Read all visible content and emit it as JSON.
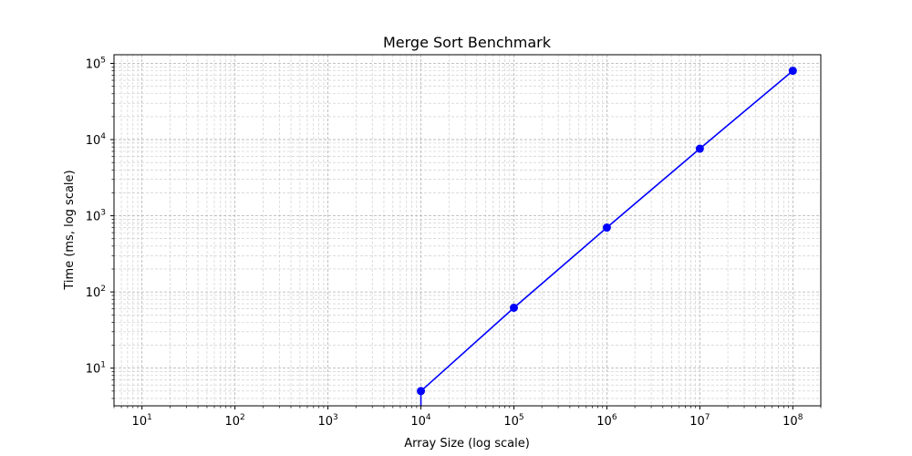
{
  "chart_data": {
    "type": "line",
    "title": "Merge Sort Benchmark",
    "xlabel": "Array Size (log scale)",
    "ylabel": "Time (ms, log scale)",
    "xscale": "log",
    "yscale": "log",
    "xlim": [
      5,
      200000000
    ],
    "ylim": [
      3.2,
      130000
    ],
    "grid": true,
    "x_ticks": [
      {
        "base": "10",
        "exp": "1"
      },
      {
        "base": "10",
        "exp": "2"
      },
      {
        "base": "10",
        "exp": "3"
      },
      {
        "base": "10",
        "exp": "4"
      },
      {
        "base": "10",
        "exp": "5"
      },
      {
        "base": "10",
        "exp": "6"
      },
      {
        "base": "10",
        "exp": "7"
      },
      {
        "base": "10",
        "exp": "8"
      }
    ],
    "y_ticks": [
      {
        "base": "10",
        "exp": "1"
      },
      {
        "base": "10",
        "exp": "2"
      },
      {
        "base": "10",
        "exp": "3"
      },
      {
        "base": "10",
        "exp": "4"
      },
      {
        "base": "10",
        "exp": "5"
      }
    ],
    "series": [
      {
        "color": "#0000ff",
        "marker": "circle",
        "x": [
          10000,
          100000,
          1000000,
          10000000,
          100000000
        ],
        "y": [
          5,
          62,
          700,
          7600,
          80000
        ]
      }
    ]
  }
}
